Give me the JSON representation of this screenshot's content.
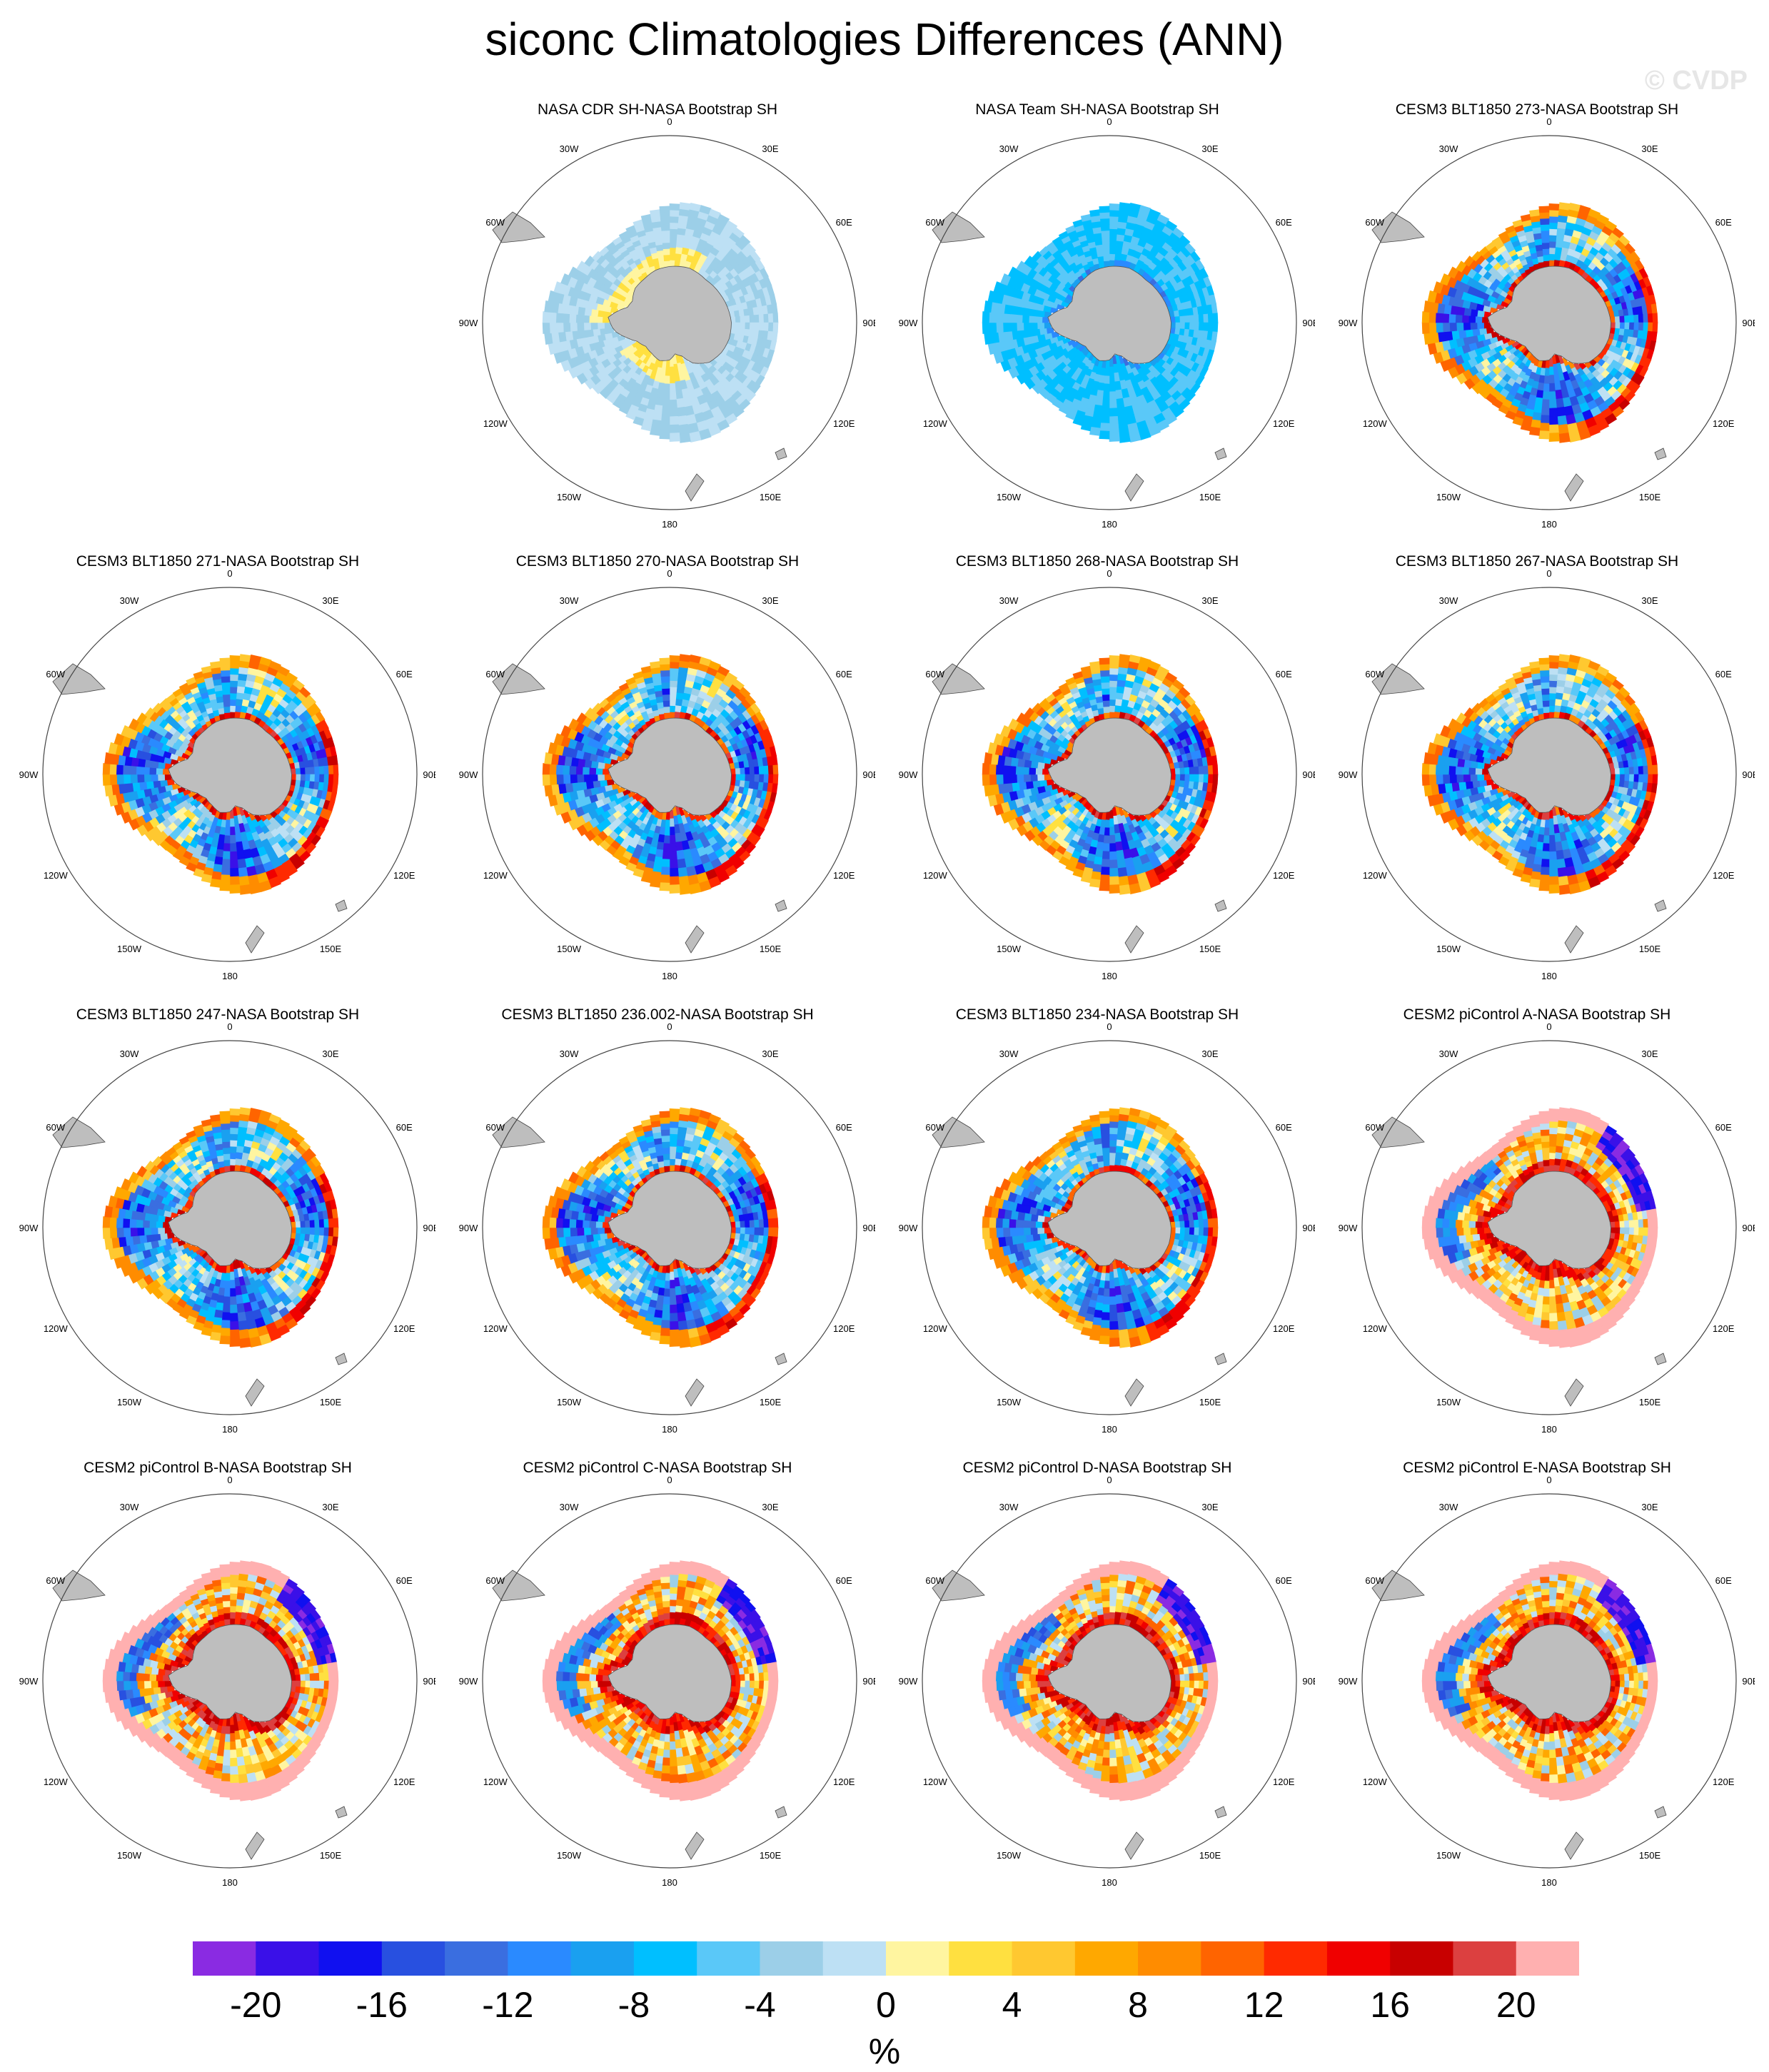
{
  "title": "siconc Climatologies Differences (ANN)",
  "watermark": "© CVDP",
  "chart_data": {
    "type": "heatmap",
    "title": "siconc Climatologies Differences (ANN)",
    "projection": "south polar stereographic",
    "longitude_labels": [
      "0",
      "30E",
      "60E",
      "90E",
      "120E",
      "150E",
      "180",
      "150W",
      "120W",
      "90W",
      "60W",
      "30W"
    ],
    "panels": [
      {
        "title": "NASA CDR SH-NASA Bootstrap SH",
        "pattern": "cdr"
      },
      {
        "title": "NASA Team SH-NASA Bootstrap SH",
        "pattern": "team"
      },
      {
        "title": "CESM3 BLT1850 273-NASA Bootstrap SH",
        "pattern": "cesm3"
      },
      {
        "title": "CESM3 BLT1850 271-NASA Bootstrap SH",
        "pattern": "cesm3"
      },
      {
        "title": "CESM3 BLT1850 270-NASA Bootstrap SH",
        "pattern": "cesm3"
      },
      {
        "title": "CESM3 BLT1850 268-NASA Bootstrap SH",
        "pattern": "cesm3"
      },
      {
        "title": "CESM3 BLT1850 267-NASA Bootstrap SH",
        "pattern": "cesm3"
      },
      {
        "title": "CESM3 BLT1850 247-NASA Bootstrap SH",
        "pattern": "cesm3"
      },
      {
        "title": "CESM3 BLT1850 236.002-NASA Bootstrap SH",
        "pattern": "cesm3"
      },
      {
        "title": "CESM3 BLT1850 234-NASA Bootstrap SH",
        "pattern": "cesm3"
      },
      {
        "title": "CESM2 piControl A-NASA Bootstrap SH",
        "pattern": "cesm2"
      },
      {
        "title": "CESM2 piControl B-NASA Bootstrap SH",
        "pattern": "cesm2"
      },
      {
        "title": "CESM2 piControl C-NASA Bootstrap SH",
        "pattern": "cesm2"
      },
      {
        "title": "CESM2 piControl D-NASA Bootstrap SH",
        "pattern": "cesm2"
      },
      {
        "title": "CESM2 piControl E-NASA Bootstrap SH",
        "pattern": "cesm2"
      }
    ],
    "colorbar": {
      "unit": "%",
      "range": [
        -22,
        22
      ],
      "step": 2,
      "tick_labels": [
        "-20",
        "-16",
        "-12",
        "-8",
        "-4",
        "0",
        "4",
        "8",
        "12",
        "16",
        "20"
      ],
      "tick_values": [
        -20,
        -16,
        -12,
        -8,
        -4,
        0,
        4,
        8,
        12,
        16,
        20
      ],
      "colors": [
        "#8a2be2",
        "#3a10e8",
        "#1010f0",
        "#2850e0",
        "#3a6ee0",
        "#2a8aff",
        "#1aa0f0",
        "#00bfff",
        "#5ac8f8",
        "#9ccfe8",
        "#bde0f4",
        "#fff5a0",
        "#ffe040",
        "#ffc830",
        "#ffa800",
        "#ff8c00",
        "#ff6400",
        "#ff2a00",
        "#f00000",
        "#c80000",
        "#dc4040",
        "#ffb0b0"
      ]
    },
    "land_color": "#bebebe"
  }
}
